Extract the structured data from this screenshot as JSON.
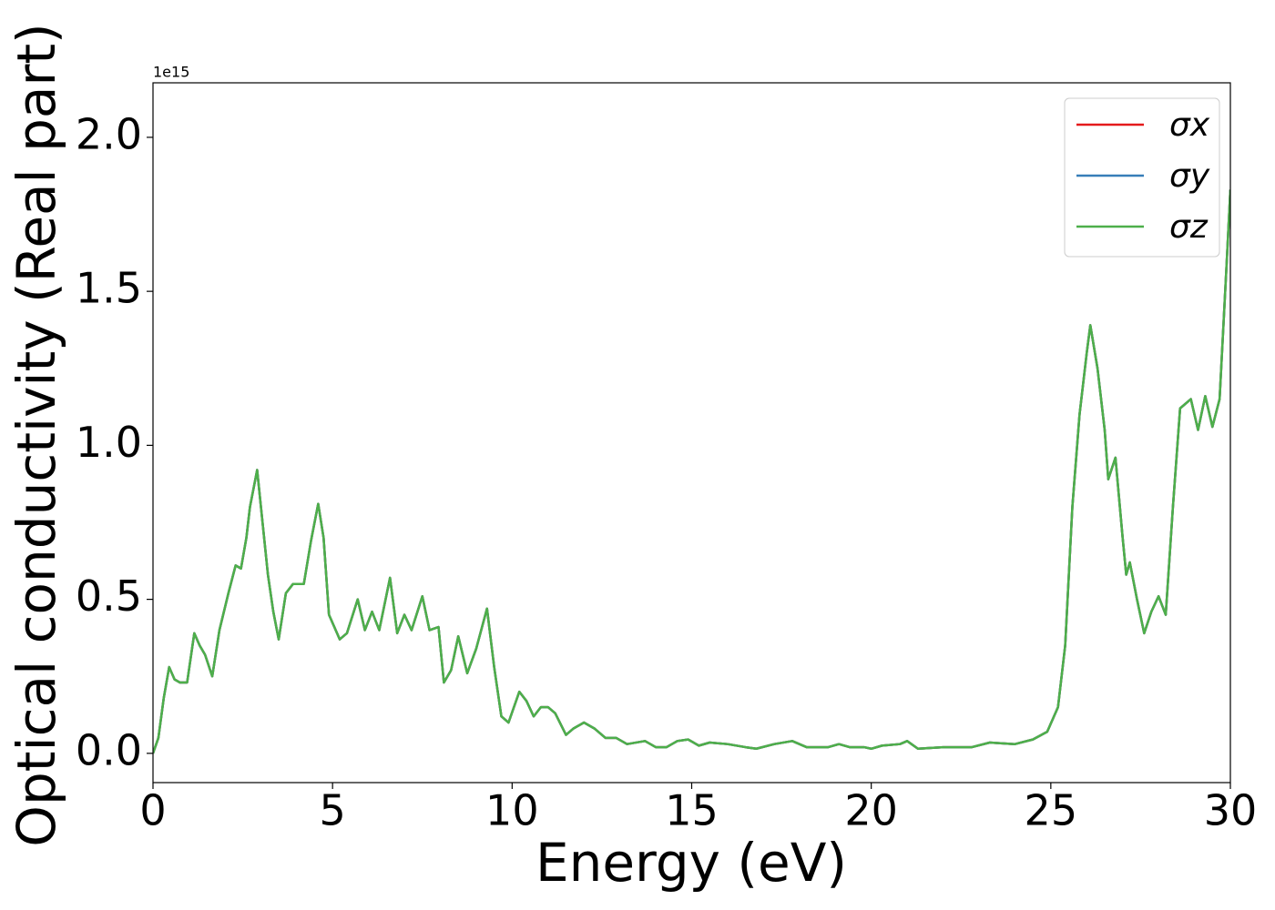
{
  "chart_data": {
    "type": "line",
    "x_label": "Energy (eV)",
    "y_label": "Optical conductivity (Real part)",
    "y_offset_label": "1e15",
    "x": [
      0,
      0.15,
      0.3,
      0.45,
      0.6,
      0.75,
      0.95,
      1.15,
      1.3,
      1.45,
      1.65,
      1.85,
      2.1,
      2.3,
      2.45,
      2.6,
      2.7,
      2.9,
      3.05,
      3.2,
      3.35,
      3.5,
      3.7,
      3.9,
      4.05,
      4.2,
      4.4,
      4.6,
      4.75,
      4.9,
      5.2,
      5.4,
      5.7,
      5.9,
      6.1,
      6.3,
      6.6,
      6.8,
      7.0,
      7.2,
      7.5,
      7.7,
      7.95,
      8.1,
      8.3,
      8.5,
      8.75,
      9.0,
      9.3,
      9.5,
      9.7,
      9.9,
      10.2,
      10.4,
      10.6,
      10.8,
      11.0,
      11.2,
      11.5,
      11.7,
      12.0,
      12.3,
      12.6,
      12.9,
      13.2,
      13.7,
      14.0,
      14.3,
      14.6,
      14.9,
      15.2,
      15.5,
      16.0,
      16.5,
      16.8,
      17.3,
      17.8,
      18.2,
      18.8,
      19.1,
      19.4,
      19.8,
      20.0,
      20.3,
      20.8,
      21.0,
      21.3,
      22.0,
      22.8,
      23.3,
      24.0,
      24.5,
      24.9,
      25.2,
      25.4,
      25.6,
      25.8,
      26.0,
      26.1,
      26.3,
      26.5,
      26.6,
      26.8,
      27.0,
      27.1,
      27.2,
      27.4,
      27.6,
      27.8,
      28.0,
      28.2,
      28.4,
      28.6,
      28.9,
      29.1,
      29.3,
      29.5,
      29.7,
      29.9,
      30.0
    ],
    "series": [
      {
        "name": "σx",
        "color": "#e41a1c",
        "values": [
          0,
          0.05,
          0.18,
          0.28,
          0.24,
          0.23,
          0.23,
          0.39,
          0.35,
          0.32,
          0.25,
          0.4,
          0.52,
          0.61,
          0.6,
          0.7,
          0.8,
          0.92,
          0.75,
          0.58,
          0.46,
          0.37,
          0.52,
          0.55,
          0.55,
          0.55,
          0.69,
          0.81,
          0.7,
          0.45,
          0.37,
          0.39,
          0.5,
          0.4,
          0.46,
          0.4,
          0.57,
          0.39,
          0.45,
          0.4,
          0.51,
          0.4,
          0.41,
          0.23,
          0.27,
          0.38,
          0.26,
          0.34,
          0.47,
          0.28,
          0.12,
          0.1,
          0.2,
          0.17,
          0.12,
          0.15,
          0.15,
          0.13,
          0.06,
          0.08,
          0.1,
          0.08,
          0.05,
          0.05,
          0.03,
          0.04,
          0.02,
          0.02,
          0.04,
          0.045,
          0.025,
          0.035,
          0.03,
          0.02,
          0.015,
          0.03,
          0.04,
          0.02,
          0.02,
          0.03,
          0.02,
          0.02,
          0.015,
          0.025,
          0.03,
          0.04,
          0.015,
          0.02,
          0.02,
          0.035,
          0.03,
          0.045,
          0.07,
          0.15,
          0.35,
          0.8,
          1.1,
          1.3,
          1.39,
          1.25,
          1.05,
          0.89,
          0.96,
          0.7,
          0.58,
          0.62,
          0.5,
          0.39,
          0.46,
          0.51,
          0.45,
          0.8,
          1.12,
          1.15,
          1.05,
          1.16,
          1.06,
          1.15,
          1.6,
          1.83
        ]
      },
      {
        "name": "σy",
        "color": "#377eb8",
        "values": [
          0,
          0.05,
          0.18,
          0.28,
          0.24,
          0.23,
          0.23,
          0.39,
          0.35,
          0.32,
          0.25,
          0.4,
          0.52,
          0.61,
          0.6,
          0.7,
          0.8,
          0.92,
          0.75,
          0.58,
          0.46,
          0.37,
          0.52,
          0.55,
          0.55,
          0.55,
          0.69,
          0.81,
          0.7,
          0.45,
          0.37,
          0.39,
          0.5,
          0.4,
          0.46,
          0.4,
          0.57,
          0.39,
          0.45,
          0.4,
          0.51,
          0.4,
          0.41,
          0.23,
          0.27,
          0.38,
          0.26,
          0.34,
          0.47,
          0.28,
          0.12,
          0.1,
          0.2,
          0.17,
          0.12,
          0.15,
          0.15,
          0.13,
          0.06,
          0.08,
          0.1,
          0.08,
          0.05,
          0.05,
          0.03,
          0.04,
          0.02,
          0.02,
          0.04,
          0.045,
          0.025,
          0.035,
          0.03,
          0.02,
          0.015,
          0.03,
          0.04,
          0.02,
          0.02,
          0.03,
          0.02,
          0.02,
          0.015,
          0.025,
          0.03,
          0.04,
          0.015,
          0.02,
          0.02,
          0.035,
          0.03,
          0.045,
          0.07,
          0.15,
          0.35,
          0.8,
          1.1,
          1.3,
          1.39,
          1.25,
          1.05,
          0.89,
          0.96,
          0.7,
          0.58,
          0.62,
          0.5,
          0.39,
          0.46,
          0.51,
          0.45,
          0.8,
          1.12,
          1.15,
          1.05,
          1.16,
          1.06,
          1.15,
          1.6,
          1.83
        ]
      },
      {
        "name": "σz",
        "color": "#4daf4a",
        "values": [
          0,
          0.05,
          0.18,
          0.28,
          0.24,
          0.23,
          0.23,
          0.39,
          0.35,
          0.32,
          0.25,
          0.4,
          0.52,
          0.61,
          0.6,
          0.7,
          0.8,
          0.92,
          0.75,
          0.58,
          0.46,
          0.37,
          0.52,
          0.55,
          0.55,
          0.55,
          0.69,
          0.81,
          0.7,
          0.45,
          0.37,
          0.39,
          0.5,
          0.4,
          0.46,
          0.4,
          0.57,
          0.39,
          0.45,
          0.4,
          0.51,
          0.4,
          0.41,
          0.23,
          0.27,
          0.38,
          0.26,
          0.34,
          0.47,
          0.28,
          0.12,
          0.1,
          0.2,
          0.17,
          0.12,
          0.15,
          0.15,
          0.13,
          0.06,
          0.08,
          0.1,
          0.08,
          0.05,
          0.05,
          0.03,
          0.04,
          0.02,
          0.02,
          0.04,
          0.045,
          0.025,
          0.035,
          0.03,
          0.02,
          0.015,
          0.03,
          0.04,
          0.02,
          0.02,
          0.03,
          0.02,
          0.02,
          0.015,
          0.025,
          0.03,
          0.04,
          0.015,
          0.02,
          0.02,
          0.035,
          0.03,
          0.045,
          0.07,
          0.15,
          0.35,
          0.8,
          1.1,
          1.3,
          1.39,
          1.25,
          1.05,
          0.89,
          0.96,
          0.7,
          0.58,
          0.62,
          0.5,
          0.39,
          0.46,
          0.51,
          0.45,
          0.8,
          1.12,
          1.15,
          1.05,
          1.16,
          1.06,
          1.15,
          1.6,
          1.83
        ]
      }
    ],
    "xlim": [
      0,
      30
    ],
    "xticks": [
      0,
      5,
      10,
      15,
      20,
      25,
      30
    ],
    "ylim": [
      -0.095,
      2.177
    ],
    "yticks": [
      {
        "value": 0,
        "label": "0.0"
      },
      {
        "value": 0.5,
        "label": "0.5"
      },
      {
        "value": 1,
        "label": "1.0"
      },
      {
        "value": 1.5,
        "label": "1.5"
      },
      {
        "value": 2,
        "label": "2.0"
      }
    ],
    "grid": false,
    "legend": "upper right"
  }
}
